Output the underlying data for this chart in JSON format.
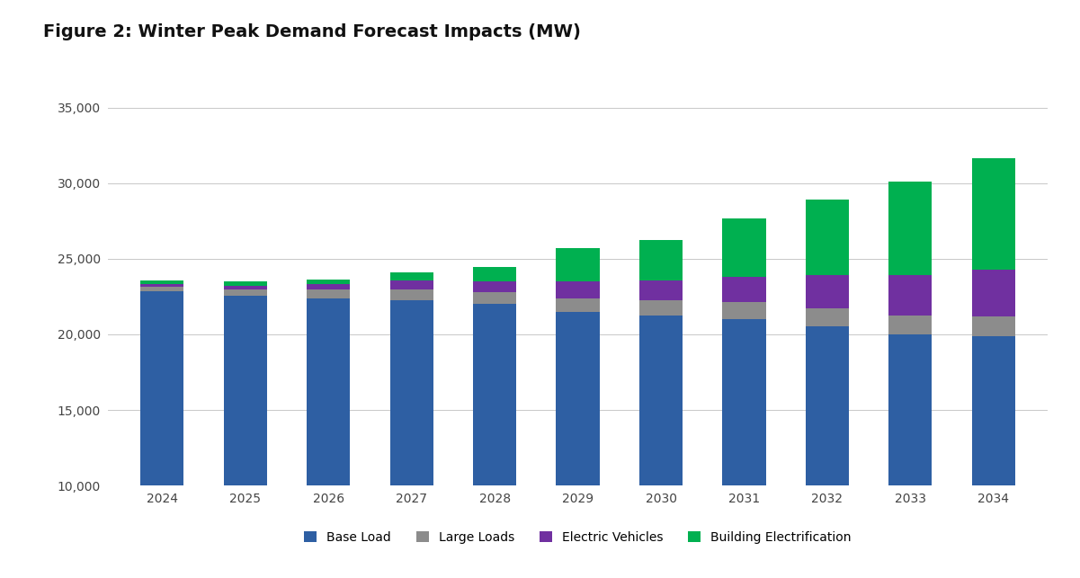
{
  "title": "Figure 2: Winter Peak Demand Forecast Impacts (MW)",
  "years": [
    2024,
    2025,
    2026,
    2027,
    2028,
    2029,
    2030,
    2031,
    2032,
    2033,
    2034
  ],
  "base_load": [
    22850,
    22550,
    22400,
    22250,
    22000,
    21500,
    21250,
    21000,
    20550,
    20000,
    19850
  ],
  "large_loads": [
    300,
    450,
    600,
    700,
    800,
    900,
    1000,
    1150,
    1200,
    1250,
    1350
  ],
  "electric_vehicles": [
    150,
    200,
    300,
    600,
    700,
    1100,
    1300,
    1650,
    2150,
    2650,
    3050
  ],
  "building_electrification": [
    250,
    300,
    350,
    550,
    950,
    2200,
    2700,
    3850,
    5000,
    6200,
    7400
  ],
  "colors": {
    "base_load": "#2E5FA3",
    "large_loads": "#8C8C8C",
    "electric_vehicles": "#7030A0",
    "building_electrification": "#00B050"
  },
  "legend_labels": [
    "Base Load",
    "Large Loads",
    "Electric Vehicles",
    "Building Electrification"
  ],
  "ylim": [
    10000,
    36000
  ],
  "yticks": [
    10000,
    15000,
    20000,
    25000,
    30000,
    35000
  ],
  "background_color": "#FFFFFF",
  "grid_color": "#C8C8C8",
  "title_fontsize": 14,
  "tick_fontsize": 10,
  "legend_fontsize": 10
}
